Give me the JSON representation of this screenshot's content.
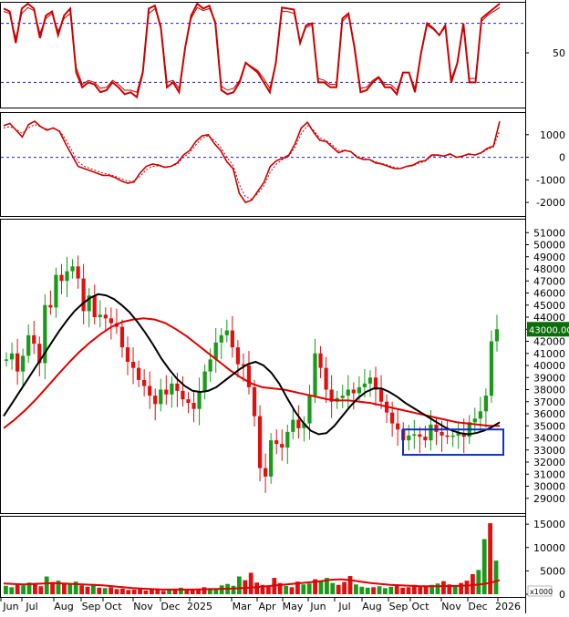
{
  "chart_data": {
    "type": "candlestick",
    "time_axis": [
      "Jun",
      "Jul",
      "Aug",
      "Sep",
      "Oct",
      "Nov",
      "Dec",
      "2025",
      "Mar",
      "Apr",
      "May",
      "Jun",
      "Jul",
      "Aug",
      "Sep",
      "Oct",
      "Nov",
      "Dec",
      "2026"
    ],
    "colors": {
      "up": "#1a9a1a",
      "down": "#e01010",
      "ma_fast": "#000000",
      "ma_slow": "#e00000",
      "oscillator": "#cc0000",
      "reference_lines": "#1f1fd6",
      "highlight_box": "#1030c0",
      "last_price_bg": "#0b6e0b"
    },
    "panels": [
      {
        "name": "stochastic-oscillator",
        "ylim": [
          0,
          100
        ],
        "yticks": [
          "50"
        ],
        "reference_levels": [
          80,
          20
        ],
        "series": [
          {
            "values": [
              95,
              92,
              60,
              95,
              100,
              95,
              65,
              88,
              92,
              68,
              88,
              95,
              30,
              15,
              20,
              18,
              10,
              12,
              20,
              15,
              8,
              10,
              5,
              30,
              95,
              98,
              75,
              15,
              20,
              10,
              55,
              88,
              100,
              95,
              98,
              80,
              12,
              8,
              10,
              20,
              40,
              35,
              30,
              20,
              10,
              40,
              96,
              95,
              94,
              60,
              78,
              80,
              20,
              20,
              15,
              15,
              85,
              90,
              55,
              10,
              12,
              20,
              25,
              15,
              15,
              8,
              30,
              30,
              10,
              50,
              80,
              75,
              68,
              78,
              20,
              40,
              80,
              20,
              20,
              85,
              90,
              95,
              100
            ]
          },
          {
            "values": [
              92,
              90,
              65,
              90,
              96,
              93,
              70,
              85,
              90,
              72,
              85,
              90,
              35,
              18,
              22,
              20,
              14,
              15,
              22,
              18,
              12,
              12,
              10,
              32,
              90,
              95,
              78,
              20,
              22,
              14,
              55,
              85,
              96,
              93,
              95,
              82,
              16,
              12,
              14,
              22,
              40,
              36,
              32,
              24,
              14,
              40,
              92,
              92,
              90,
              62,
              76,
              78,
              24,
              22,
              18,
              18,
              82,
              88,
              58,
              14,
              15,
              22,
              26,
              18,
              18,
              12,
              30,
              30,
              14,
              50,
              78,
              74,
              68,
              76,
              24,
              40,
              78,
              24,
              24,
              82,
              88,
              92,
              96
            ]
          }
        ]
      },
      {
        "name": "macd",
        "ylim": [
          -2400,
          1800
        ],
        "yticks": [
          "1000",
          "0",
          "-1000",
          "-2000"
        ],
        "reference_levels": [
          0
        ],
        "series": [
          {
            "values": [
              1400,
              1500,
              1200,
              900,
              1450,
              1600,
              1350,
              1200,
              1300,
              1150,
              600,
              100,
              -400,
              -500,
              -600,
              -700,
              -800,
              -800,
              -900,
              -1050,
              -1150,
              -1100,
              -700,
              -400,
              -300,
              -350,
              -450,
              -400,
              -250,
              100,
              300,
              700,
              950,
              1000,
              600,
              300,
              -200,
              -500,
              -1600,
              -2000,
              -1900,
              -1500,
              -1100,
              -400,
              -150,
              -50,
              100,
              600,
              1300,
              1550,
              1100,
              750,
              700,
              450,
              200,
              300,
              250,
              0,
              -100,
              -100,
              -250,
              -300,
              -400,
              -500,
              -500,
              -400,
              -350,
              -200,
              -150,
              100,
              100,
              50,
              150,
              0,
              50,
              150,
              100,
              200,
              400,
              500,
              1600
            ]
          },
          {
            "values": [
              1300,
              1350,
              1250,
              1050,
              1300,
              1450,
              1350,
              1250,
              1280,
              1180,
              800,
              300,
              -200,
              -400,
              -500,
              -600,
              -700,
              -750,
              -850,
              -950,
              -1050,
              -1050,
              -850,
              -550,
              -400,
              -380,
              -420,
              -400,
              -300,
              0,
              200,
              550,
              850,
              950,
              750,
              450,
              0,
              -350,
              -1200,
              -1750,
              -1850,
              -1600,
              -1250,
              -650,
              -300,
              -100,
              50,
              450,
              1050,
              1400,
              1200,
              850,
              750,
              550,
              300,
              300,
              250,
              50,
              -50,
              -100,
              -200,
              -280,
              -350,
              -450,
              -480,
              -420,
              -380,
              -250,
              -180,
              50,
              80,
              50,
              120,
              20,
              40,
              120,
              100,
              180,
              350,
              450,
              1200
            ]
          }
        ]
      },
      {
        "name": "price",
        "ylim": [
          28000,
          52000
        ],
        "yticks": [
          "51000",
          "50000",
          "49000",
          "48000",
          "47000",
          "46000",
          "45000",
          "44000",
          "43000",
          "42000",
          "41000",
          "40000",
          "39000",
          "38000",
          "37000",
          "36000",
          "35000",
          "34000",
          "33000",
          "32000",
          "31000",
          "30000",
          "29000"
        ],
        "last_price_label": "43000.00",
        "closes": [
          40500,
          41000,
          39500,
          40800,
          42500,
          41800,
          40200,
          45000,
          44800,
          47500,
          47000,
          47800,
          48200,
          47200,
          44500,
          45800,
          44000,
          44200,
          43900,
          43500,
          43200,
          41500,
          40300,
          39800,
          38800,
          38300,
          37500,
          36800,
          38000,
          37600,
          38500,
          37900,
          37200,
          36900,
          36400,
          37800,
          39500,
          40500,
          41900,
          42500,
          42900,
          41500,
          40100,
          40000,
          38200,
          35800,
          31500,
          30800,
          33800,
          33500,
          33200,
          34500,
          35500,
          34800,
          35200,
          37500,
          41000,
          39800,
          38000,
          37000,
          37300,
          37500,
          38000,
          37700,
          38200,
          38500,
          39000,
          38000,
          37000,
          36100,
          35200,
          34700,
          33800,
          34200,
          34300,
          34100,
          33800,
          35100,
          34500,
          34200,
          34100,
          34200,
          34400,
          34100,
          35300,
          35600,
          36200,
          37500,
          42000,
          43000
        ],
        "ma_fast": [
          35800,
          36800,
          37800,
          38800,
          39800,
          40800,
          41800,
          42800,
          43700,
          44500,
          45100,
          45600,
          45900,
          45800,
          45500,
          45000,
          44400,
          43600,
          42700,
          41700,
          40600,
          39700,
          38900,
          38300,
          37900,
          37800,
          37900,
          38200,
          38700,
          39200,
          39700,
          40100,
          40300,
          40000,
          39400,
          38500,
          37300,
          36200,
          35300,
          34600,
          34300,
          34400,
          35000,
          35800,
          36600,
          37300,
          37800,
          38100,
          38100,
          37800,
          37400,
          36900,
          36500,
          36100,
          35700,
          35300,
          34900,
          34600,
          34400,
          34300,
          34400,
          34600,
          34900,
          35300
        ],
        "ma_slow": [
          34800,
          35500,
          36300,
          37200,
          38200,
          39200,
          40200,
          41100,
          41900,
          42600,
          43200,
          43600,
          43800,
          43900,
          43800,
          43500,
          43000,
          42400,
          41700,
          41000,
          40300,
          39600,
          39000,
          38500,
          38200,
          38100,
          38000,
          37800,
          37600,
          37400,
          37200,
          37100,
          37100,
          37000,
          36900,
          36700,
          36500,
          36300,
          36100,
          35900,
          35700,
          35500,
          35300,
          35200,
          35100,
          35000,
          35000
        ],
        "highlight_range": {
          "price_low": 32600,
          "price_high": 34700
        }
      },
      {
        "name": "volume",
        "ylim": [
          0,
          16000
        ],
        "yticks": [
          "15000",
          "10000",
          "5000",
          "0"
        ],
        "unit_label": "x1000",
        "bars": [
          1800,
          1500,
          2200,
          1900,
          2500,
          2100,
          1700,
          3800,
          2600,
          2900,
          2300,
          2100,
          2700,
          1900,
          1600,
          2200,
          1400,
          1300,
          1500,
          1100,
          1200,
          900,
          1000,
          1300,
          800,
          1100,
          900,
          700,
          1000,
          1200,
          1400,
          1000,
          900,
          1100,
          1500,
          1300,
          1200,
          1900,
          2200,
          1800,
          3800,
          3000,
          4600,
          2500,
          2000,
          1800,
          3500,
          2400,
          1800,
          1500,
          2700,
          2100,
          2300,
          3200,
          2800,
          3500,
          2400,
          2000,
          2600,
          3900,
          2100,
          1600,
          1400,
          1500,
          1700,
          1300,
          1600,
          1800,
          1400,
          1500,
          2000,
          1600,
          1800,
          2000,
          2300,
          2800,
          2100,
          1700,
          2400,
          2900,
          4300,
          5200,
          11800,
          15200,
          7200
        ],
        "ma": [
          2300,
          2200,
          2100,
          2200,
          2300,
          2400,
          2300,
          2200,
          2100,
          2000,
          1900,
          1700,
          1500,
          1300,
          1200,
          1100,
          1000,
          1000,
          1000,
          1000,
          1050,
          1100,
          1150,
          1200,
          1300,
          1400,
          1600,
          1800,
          2000,
          2200,
          2400,
          2600,
          2800,
          3100,
          3200,
          3000,
          2700,
          2400,
          2200,
          2000,
          1900,
          1800,
          1700,
          1700,
          1700,
          1750,
          1800,
          1900,
          2100,
          2400,
          3000
        ]
      }
    ]
  }
}
